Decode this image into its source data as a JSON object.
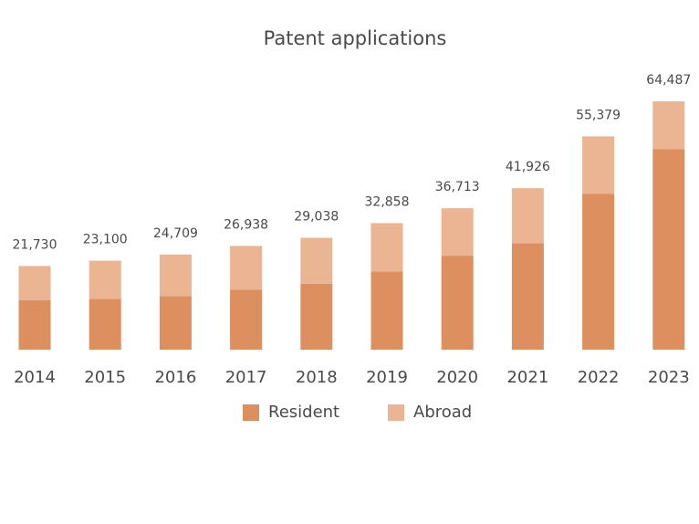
{
  "chart_data": {
    "type": "bar",
    "stacked": true,
    "title": "Patent applications",
    "xlabel": "",
    "ylabel": "",
    "grid": false,
    "legend_position": "bottom",
    "categories": [
      "2014",
      "2015",
      "2016",
      "2017",
      "2018",
      "2019",
      "2020",
      "2021",
      "2022",
      "2023"
    ],
    "series": [
      {
        "name": "Resident",
        "color": "#DE8F5F",
        "values": [
          12800,
          13200,
          13900,
          15600,
          17100,
          20300,
          24400,
          27600,
          40500,
          52100
        ]
      },
      {
        "name": "Abroad",
        "color": "#EBB493",
        "values": [
          8930,
          9900,
          10809,
          11338,
          11938,
          12558,
          12313,
          14326,
          14879,
          12387
        ]
      }
    ],
    "totals": [
      21730,
      23100,
      24709,
      26938,
      29038,
      32858,
      36713,
      41926,
      55379,
      64487
    ],
    "total_labels": [
      "21,730",
      "23,100",
      "24,709",
      "26,938",
      "29,038",
      "32,858",
      "36,713",
      "41,926",
      "55,379",
      "64,487"
    ],
    "ylim": [
      0,
      68000
    ]
  }
}
